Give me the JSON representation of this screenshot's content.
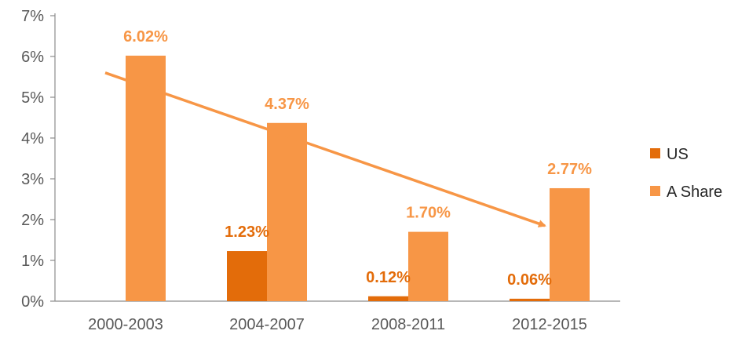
{
  "chart_data": {
    "type": "bar",
    "title": "",
    "xlabel": "",
    "ylabel": "",
    "categories": [
      "2000-2003",
      "2004-2007",
      "2008-2011",
      "2012-2015"
    ],
    "ylim": [
      0,
      7
    ],
    "y_ticks": [
      0,
      1,
      2,
      3,
      4,
      5,
      6,
      7
    ],
    "y_tick_labels": [
      "0%",
      "1%",
      "2%",
      "3%",
      "4%",
      "5%",
      "6%",
      "7%"
    ],
    "grid": false,
    "legend_position": "right",
    "series": [
      {
        "name": "US",
        "color": "#e36c0a",
        "values": [
          null,
          1.23,
          0.12,
          0.06
        ],
        "labels": [
          "",
          "1.23%",
          "0.12%",
          "0.06%"
        ]
      },
      {
        "name": "A Share",
        "color": "#f79646",
        "values": [
          6.02,
          4.37,
          1.7,
          2.77
        ],
        "labels": [
          "6.02%",
          "4.37%",
          "1.70%",
          "2.77%"
        ]
      }
    ],
    "annotations": [
      {
        "type": "trend-arrow",
        "color": "#f79646",
        "from": {
          "category": "2000-2003",
          "value": 5.6
        },
        "to": {
          "category": "2012-2015",
          "value": 1.85
        }
      }
    ]
  }
}
